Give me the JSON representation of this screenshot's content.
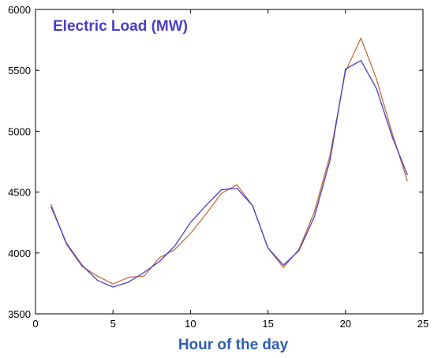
{
  "chart_data": {
    "type": "line",
    "title": "Electric Load (MW)",
    "xlabel": "Hour of the day",
    "ylabel": "",
    "xlim": [
      0,
      25
    ],
    "ylim": [
      3500,
      6000
    ],
    "x_ticks": [
      "0",
      "5",
      "10",
      "15",
      "20",
      "25"
    ],
    "y_ticks": [
      "3500",
      "4000",
      "4500",
      "5000",
      "5500",
      "6000"
    ],
    "grid": false,
    "x": [
      1,
      2,
      3,
      4,
      5,
      6,
      7,
      8,
      9,
      10,
      11,
      12,
      13,
      14,
      15,
      16,
      17,
      18,
      19,
      20,
      21,
      22,
      23,
      24
    ],
    "series": [
      {
        "color": "#c0703a",
        "values": [
          4400,
          4070,
          3890,
          3810,
          3745,
          3800,
          3810,
          3960,
          4030,
          4160,
          4320,
          4490,
          4560,
          4390,
          4040,
          3880,
          4030,
          4340,
          4800,
          5490,
          5765,
          5430,
          4990,
          4590
        ]
      },
      {
        "color": "#4a3ec8",
        "values": [
          4380,
          4080,
          3900,
          3775,
          3720,
          3760,
          3840,
          3930,
          4060,
          4250,
          4390,
          4520,
          4530,
          4390,
          4040,
          3900,
          4020,
          4300,
          4760,
          5510,
          5580,
          5350,
          4960,
          4640
        ]
      }
    ],
    "title_color": "#4a3ec8",
    "xlabel_color": "#2e5fb0"
  }
}
